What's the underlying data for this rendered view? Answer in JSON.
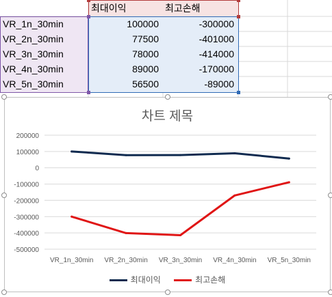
{
  "sheet": {
    "headers": [
      "최대이익",
      "최고손해"
    ],
    "rows": [
      {
        "label": "VR_1n_30min",
        "values": [
          "100000",
          "-300000"
        ]
      },
      {
        "label": "VR_2n_30min",
        "values": [
          "77500",
          "-401000"
        ]
      },
      {
        "label": "VR_3n_30min",
        "values": [
          "78000",
          "-414000"
        ]
      },
      {
        "label": "VR_4n_30min",
        "values": [
          "89000",
          "-170000"
        ]
      },
      {
        "label": "VR_5n_30min",
        "values": [
          "56500",
          "-89000"
        ]
      }
    ],
    "colors": {
      "row_sel": "#7e57a8",
      "head_sel": "#b23b3b",
      "val_sel": "#2f6ab5",
      "gridline": "#d9d9d9"
    }
  },
  "chart_data": {
    "type": "line",
    "title": "차트 제목",
    "categories": [
      "VR_1n_30min",
      "VR_2n_30min",
      "VR_3n_30min",
      "VR_4n_30min",
      "VR_5n_30min"
    ],
    "series": [
      {
        "name": "최대이익",
        "values": [
          100000,
          77500,
          78000,
          89000,
          56500
        ],
        "color": "#0f2a4f"
      },
      {
        "name": "최고손해",
        "values": [
          -300000,
          -401000,
          -414000,
          -170000,
          -89000
        ],
        "color": "#e01515"
      }
    ],
    "ylim": [
      -500000,
      200000
    ],
    "yticks": [
      "200000",
      "100000",
      "0",
      "-100000",
      "-200000",
      "-300000",
      "-400000",
      "-500000"
    ],
    "grid": true,
    "legend": "bottom"
  }
}
